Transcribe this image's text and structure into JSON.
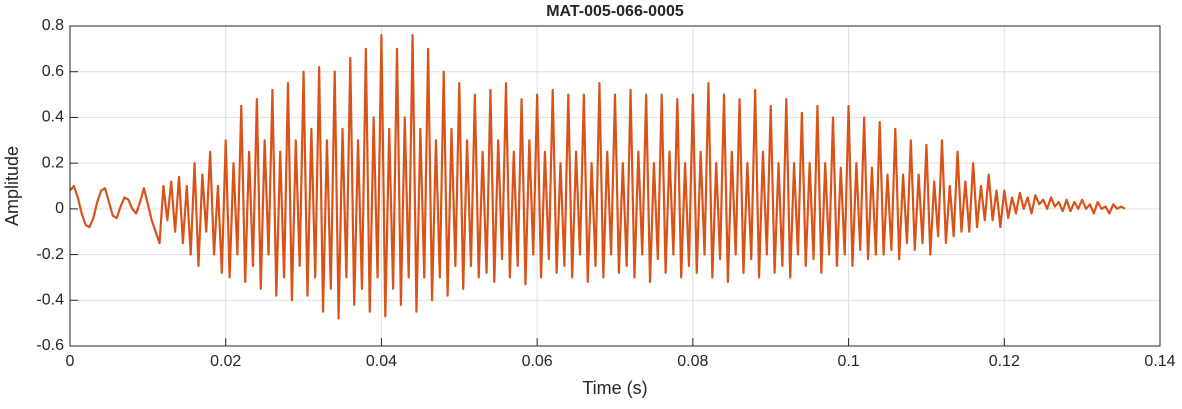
{
  "chart_data": {
    "type": "line",
    "title": "MAT-005-066-0005",
    "xlabel": "Time (s)",
    "ylabel": "Amplitude",
    "xlim": [
      0,
      0.14
    ],
    "ylim": [
      -0.6,
      0.8
    ],
    "xticks": [
      0,
      0.02,
      0.04,
      0.06,
      0.08,
      0.1,
      0.12,
      0.14
    ],
    "yticks": [
      -0.6,
      -0.4,
      -0.2,
      0,
      0.2,
      0.4,
      0.6,
      0.8
    ],
    "grid": true,
    "x": [
      0,
      0.0005,
      0.001,
      0.0015,
      0.002,
      0.0025,
      0.003,
      0.0035,
      0.004,
      0.0045,
      0.005,
      0.0055,
      0.006,
      0.0065,
      0.007,
      0.0075,
      0.008,
      0.0085,
      0.009,
      0.0095,
      0.01,
      0.0105,
      0.011,
      0.0115,
      0.012,
      0.0125,
      0.013,
      0.0135,
      0.014,
      0.0145,
      0.015,
      0.0155,
      0.016,
      0.0165,
      0.017,
      0.0175,
      0.018,
      0.0185,
      0.019,
      0.0195,
      0.02,
      0.0205,
      0.021,
      0.0215,
      0.022,
      0.0225,
      0.023,
      0.0235,
      0.024,
      0.0245,
      0.025,
      0.0255,
      0.026,
      0.0265,
      0.027,
      0.0275,
      0.028,
      0.0285,
      0.029,
      0.0295,
      0.03,
      0.0305,
      0.031,
      0.0315,
      0.032,
      0.0325,
      0.033,
      0.0335,
      0.034,
      0.0345,
      0.035,
      0.0355,
      0.036,
      0.0365,
      0.037,
      0.0375,
      0.038,
      0.0385,
      0.039,
      0.0395,
      0.04,
      0.0405,
      0.041,
      0.0415,
      0.042,
      0.0425,
      0.043,
      0.0435,
      0.044,
      0.0445,
      0.045,
      0.0455,
      0.046,
      0.0465,
      0.047,
      0.0475,
      0.048,
      0.0485,
      0.049,
      0.0495,
      0.05,
      0.0505,
      0.051,
      0.0515,
      0.052,
      0.0525,
      0.053,
      0.0535,
      0.054,
      0.0545,
      0.055,
      0.0555,
      0.056,
      0.0565,
      0.057,
      0.0575,
      0.058,
      0.0585,
      0.059,
      0.0595,
      0.06,
      0.0605,
      0.061,
      0.0615,
      0.062,
      0.0625,
      0.063,
      0.0635,
      0.064,
      0.0645,
      0.065,
      0.0655,
      0.066,
      0.0665,
      0.067,
      0.0675,
      0.068,
      0.0685,
      0.069,
      0.0695,
      0.07,
      0.0705,
      0.071,
      0.0715,
      0.072,
      0.0725,
      0.073,
      0.0735,
      0.074,
      0.0745,
      0.075,
      0.0755,
      0.076,
      0.0765,
      0.077,
      0.0775,
      0.078,
      0.0785,
      0.079,
      0.0795,
      0.08,
      0.0805,
      0.081,
      0.0815,
      0.082,
      0.0825,
      0.083,
      0.0835,
      0.084,
      0.0845,
      0.085,
      0.0855,
      0.086,
      0.0865,
      0.087,
      0.0875,
      0.088,
      0.0885,
      0.089,
      0.0895,
      0.09,
      0.0905,
      0.091,
      0.0915,
      0.092,
      0.0925,
      0.093,
      0.0935,
      0.094,
      0.0945,
      0.095,
      0.0955,
      0.096,
      0.0965,
      0.097,
      0.0975,
      0.098,
      0.0985,
      0.099,
      0.0995,
      0.1,
      0.1005,
      0.101,
      0.1015,
      0.102,
      0.1025,
      0.103,
      0.1035,
      0.104,
      0.1045,
      0.105,
      0.1055,
      0.106,
      0.1065,
      0.107,
      0.1075,
      0.108,
      0.1085,
      0.109,
      0.1095,
      0.11,
      0.1105,
      0.111,
      0.1115,
      0.112,
      0.1125,
      0.113,
      0.1135,
      0.114,
      0.1145,
      0.115,
      0.1155,
      0.116,
      0.1165,
      0.117,
      0.1175,
      0.118,
      0.1185,
      0.119,
      0.1195,
      0.12,
      0.1205,
      0.121,
      0.1215,
      0.122,
      0.1225,
      0.123,
      0.1235,
      0.124,
      0.1245,
      0.125,
      0.1255,
      0.126,
      0.1265,
      0.127,
      0.1275,
      0.128,
      0.1285,
      0.129,
      0.1295,
      0.13,
      0.1305,
      0.131,
      0.1315,
      0.132,
      0.1325,
      0.133,
      0.1335,
      0.134,
      0.1345,
      0.135,
      0.1355
    ],
    "series": [
      {
        "color": "#d95319",
        "values": [
          0.08,
          0.1,
          0.05,
          -0.02,
          -0.07,
          -0.08,
          -0.04,
          0.03,
          0.08,
          0.09,
          0.03,
          -0.03,
          -0.04,
          0.01,
          0.05,
          0.04,
          0.0,
          -0.02,
          0.03,
          0.09,
          0.02,
          -0.05,
          -0.1,
          -0.15,
          0.1,
          -0.05,
          0.12,
          -0.1,
          0.14,
          -0.15,
          0.1,
          -0.2,
          0.2,
          -0.25,
          0.15,
          -0.1,
          0.25,
          -0.2,
          0.1,
          -0.28,
          0.3,
          -0.3,
          0.2,
          -0.2,
          0.45,
          -0.32,
          0.25,
          -0.25,
          0.48,
          -0.35,
          0.3,
          -0.2,
          0.52,
          -0.38,
          0.25,
          -0.3,
          0.55,
          -0.4,
          0.3,
          -0.25,
          0.6,
          -0.38,
          0.35,
          -0.3,
          0.62,
          -0.45,
          0.3,
          -0.35,
          0.6,
          -0.48,
          0.35,
          -0.3,
          0.66,
          -0.42,
          0.3,
          -0.35,
          0.7,
          -0.45,
          0.4,
          -0.3,
          0.76,
          -0.47,
          0.35,
          -0.35,
          0.7,
          -0.42,
          0.4,
          -0.3,
          0.76,
          -0.45,
          0.35,
          -0.3,
          0.7,
          -0.4,
          0.3,
          -0.3,
          0.6,
          -0.38,
          0.35,
          -0.25,
          0.55,
          -0.35,
          0.3,
          -0.25,
          0.5,
          -0.3,
          0.25,
          -0.28,
          0.52,
          -0.32,
          0.3,
          -0.22,
          0.55,
          -0.3,
          0.25,
          -0.25,
          0.48,
          -0.33,
          0.3,
          -0.2,
          0.5,
          -0.3,
          0.25,
          -0.22,
          0.52,
          -0.28,
          0.2,
          -0.25,
          0.5,
          -0.3,
          0.25,
          -0.2,
          0.5,
          -0.32,
          0.2,
          -0.25,
          0.55,
          -0.3,
          0.25,
          -0.2,
          0.5,
          -0.28,
          0.2,
          -0.25,
          0.52,
          -0.3,
          0.25,
          -0.2,
          0.5,
          -0.32,
          0.2,
          -0.22,
          0.5,
          -0.28,
          0.25,
          -0.2,
          0.48,
          -0.3,
          0.2,
          -0.25,
          0.5,
          -0.28,
          0.25,
          -0.2,
          0.55,
          -0.3,
          0.2,
          -0.22,
          0.5,
          -0.32,
          0.25,
          -0.2,
          0.48,
          -0.28,
          0.2,
          -0.22,
          0.52,
          -0.3,
          0.25,
          -0.2,
          0.45,
          -0.28,
          0.2,
          -0.25,
          0.48,
          -0.3,
          0.2,
          -0.2,
          0.42,
          -0.25,
          0.2,
          -0.22,
          0.45,
          -0.28,
          0.2,
          -0.2,
          0.4,
          -0.25,
          0.18,
          -0.2,
          0.45,
          -0.25,
          0.2,
          -0.18,
          0.4,
          -0.22,
          0.18,
          -0.2,
          0.38,
          -0.2,
          0.15,
          -0.18,
          0.35,
          -0.22,
          0.15,
          -0.15,
          0.3,
          -0.18,
          0.15,
          -0.15,
          0.28,
          -0.2,
          0.12,
          -0.12,
          0.3,
          -0.15,
          0.1,
          -0.12,
          0.25,
          -0.1,
          0.12,
          -0.1,
          0.2,
          -0.08,
          0.1,
          -0.05,
          0.15,
          -0.05,
          0.08,
          -0.08,
          0.08,
          -0.04,
          0.05,
          -0.02,
          0.07,
          0.0,
          0.05,
          -0.02,
          0.06,
          0.02,
          0.04,
          0.0,
          0.05,
          0.01,
          0.03,
          -0.01,
          0.04,
          -0.01,
          0.03,
          0.0,
          0.04,
          0.0,
          0.02,
          -0.02,
          0.03,
          0.0,
          0.01,
          -0.02,
          0.02,
          0.0,
          0.01,
          0.0
        ]
      }
    ]
  }
}
